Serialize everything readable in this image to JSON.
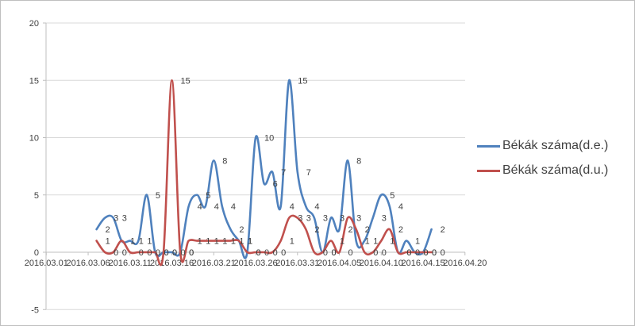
{
  "chart_data": {
    "type": "line",
    "title": "",
    "smooth": true,
    "grid": true,
    "data_labels": true,
    "legend_position": "right",
    "x": [
      "2016.03.07",
      "2016.03.08",
      "2016.03.09",
      "2016.03.10",
      "2016.03.11",
      "2016.03.12",
      "2016.03.13",
      "2016.03.14",
      "2016.03.15",
      "2016.03.16",
      "2016.03.17",
      "2016.03.18",
      "2016.03.19",
      "2016.03.20",
      "2016.03.21",
      "2016.03.22",
      "2016.03.23",
      "2016.03.24",
      "2016.03.25",
      "2016.03.26",
      "2016.03.27",
      "2016.03.28",
      "2016.03.29",
      "2016.03.30",
      "2016.03.31",
      "2016.04.01",
      "2016.04.02",
      "2016.04.03",
      "2016.04.04",
      "2016.04.05",
      "2016.04.06",
      "2016.04.07",
      "2016.04.08",
      "2016.04.09",
      "2016.04.10",
      "2016.04.11",
      "2016.04.12",
      "2016.04.13",
      "2016.04.14",
      "2016.04.15",
      "2016.04.16"
    ],
    "series": [
      {
        "name": "Békák száma(d.e.)",
        "color": "#4F81BD",
        "values": [
          2,
          3,
          3,
          1,
          1,
          1,
          5,
          0,
          0,
          0,
          0,
          4,
          5,
          4,
          8,
          4,
          2,
          1,
          0,
          10,
          6,
          7,
          4,
          15,
          7,
          4,
          3,
          0,
          3,
          2,
          8,
          1,
          1,
          3,
          5,
          4,
          0,
          1,
          0,
          0,
          2
        ]
      },
      {
        "name": "Békák száma(d.u.)",
        "color": "#C0504D",
        "values": [
          1,
          0,
          0,
          1,
          0,
          0,
          0,
          0,
          0,
          15,
          0,
          1,
          1,
          1,
          1,
          1,
          1,
          1,
          0,
          0,
          0,
          0,
          1,
          3,
          3,
          2,
          0,
          0,
          1,
          0,
          3,
          2,
          0,
          0,
          1,
          2,
          0,
          0,
          0,
          0,
          0
        ]
      }
    ],
    "x_axis": {
      "tick_labels": [
        "2016.03.01",
        "2016.03.06",
        "2016.03.11",
        "2016.03.16",
        "2016.03.21",
        "2016.03.26",
        "2016.03.31",
        "2016.04.05",
        "2016.04.10",
        "2016.04.15",
        "2016.04.20"
      ],
      "range_start": "2016.03.01",
      "range_end": "2016.04.20"
    },
    "y_axis": {
      "ticks": [
        20,
        15,
        10,
        5,
        0,
        -5
      ],
      "min": -5,
      "max": 20
    }
  },
  "colors": {
    "gridline": "#D9D9D9",
    "axis": "#BFBFBF",
    "tick_text": "#404040",
    "data_label_text": "#404040",
    "frame_border": "#BFBFBF",
    "background": "#FFFFFF"
  }
}
